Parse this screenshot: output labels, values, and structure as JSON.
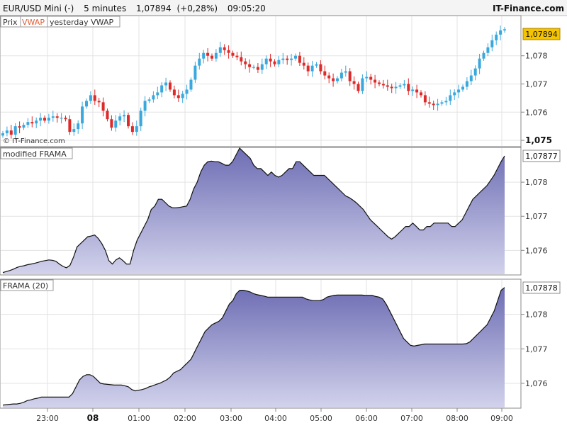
{
  "header": {
    "symbol": "EUR/USD Mini (-)",
    "timeframe": "5 minutes",
    "last_price": "1,07894",
    "change": "(+0,28%)",
    "time": "09:05:20",
    "brand": "IT-Finance.com"
  },
  "price_panel": {
    "tags": [
      "Prix",
      "VWAP",
      "yesterday VWAP"
    ],
    "copyright": "© IT-Finance.com",
    "last_value_label": "1,07894",
    "y_ticks": [
      "1,075",
      "1,076",
      "1,077",
      "1,078"
    ]
  },
  "mframa_panel": {
    "title": "modified FRAMA",
    "last_value_label": "1,07877",
    "y_ticks": [
      "1,076",
      "1,077",
      "1,078"
    ]
  },
  "frama_panel": {
    "title": "FRAMA (20)",
    "last_value_label": "1,07878",
    "y_ticks": [
      "1,076",
      "1,077",
      "1,078"
    ]
  },
  "time_axis": {
    "labels": [
      "23:00",
      "08",
      "01:00",
      "02:00",
      "03:00",
      "04:00",
      "05:00",
      "06:00",
      "07:00",
      "08:00",
      "09:00"
    ]
  },
  "colors": {
    "up_candle": "#3aa8dd",
    "down_candle": "#dd2a2a",
    "vwap_tag": "#e0603a",
    "last_price_bg": "#f5c400",
    "area_top": "#6d6db4",
    "area_bottom": "#d2d2ec",
    "grid": "#e3e3e3"
  },
  "chart_data": [
    {
      "type": "candlestick",
      "title": "EUR/USD Mini (-) 5 minutes",
      "x_unit": "time (5-minute bars)",
      "ylim": [
        1.0748,
        1.0794
      ],
      "grid": true,
      "closes": [
        1.07525,
        1.07535,
        1.0752,
        1.0755,
        1.07545,
        1.07555,
        1.07565,
        1.0756,
        1.0757,
        1.0758,
        1.0757,
        1.0758,
        1.07585,
        1.0758,
        1.0758,
        1.07575,
        1.0753,
        1.0754,
        1.0756,
        1.0762,
        1.0764,
        1.0766,
        1.0764,
        1.07635,
        1.07605,
        1.07575,
        1.07545,
        1.0757,
        1.07585,
        1.0759,
        1.0755,
        1.0753,
        1.0755,
        1.07605,
        1.0764,
        1.07645,
        1.0766,
        1.0767,
        1.07695,
        1.07705,
        1.0768,
        1.0766,
        1.0765,
        1.07665,
        1.0768,
        1.07715,
        1.07765,
        1.0779,
        1.0781,
        1.078,
        1.0779,
        1.0781,
        1.0783,
        1.0782,
        1.0781,
        1.078,
        1.07795,
        1.0778,
        1.0777,
        1.0776,
        1.0776,
        1.0775,
        1.0777,
        1.0779,
        1.0778,
        1.0777,
        1.07785,
        1.0779,
        1.07785,
        1.0779,
        1.078,
        1.07775,
        1.07765,
        1.07745,
        1.07765,
        1.0777,
        1.07745,
        1.0773,
        1.0772,
        1.0771,
        1.0772,
        1.0774,
        1.07745,
        1.0771,
        1.077,
        1.07675,
        1.0772,
        1.07725,
        1.07715,
        1.07705,
        1.077,
        1.07695,
        1.0769,
        1.07685,
        1.0769,
        1.07695,
        1.077,
        1.07675,
        1.0768,
        1.0767,
        1.0766,
        1.07635,
        1.0763,
        1.07625,
        1.0763,
        1.07635,
        1.0764,
        1.0766,
        1.0767,
        1.0768,
        1.0769,
        1.0771,
        1.0773,
        1.07755,
        1.0779,
        1.0781,
        1.0783,
        1.07855,
        1.07875,
        1.0789,
        1.07894
      ],
      "last_value": 1.07894
    },
    {
      "type": "area",
      "title": "modified FRAMA",
      "ylim": [
        1.0753,
        1.079
      ],
      "grid": true,
      "values": [
        1.07535,
        1.07538,
        1.07541,
        1.07545,
        1.0755,
        1.07553,
        1.07555,
        1.07558,
        1.0756,
        1.07562,
        1.07565,
        1.07568,
        1.0757,
        1.07572,
        1.07571,
        1.07568,
        1.0756,
        1.07553,
        1.07549,
        1.07556,
        1.0758,
        1.0761,
        1.0762,
        1.0763,
        1.0764,
        1.07642,
        1.07645,
        1.07635,
        1.0762,
        1.076,
        1.0757,
        1.0756,
        1.07572,
        1.07578,
        1.0757,
        1.0756,
        1.0756,
        1.076,
        1.0763,
        1.0765,
        1.0767,
        1.0769,
        1.0772,
        1.0773,
        1.0775,
        1.0775,
        1.0774,
        1.0773,
        1.07725,
        1.07725,
        1.07726,
        1.07728,
        1.0773,
        1.0775,
        1.0778,
        1.078,
        1.0783,
        1.0785,
        1.0786,
        1.07862,
        1.0786,
        1.0786,
        1.07855,
        1.0785,
        1.0785,
        1.0786,
        1.0788,
        1.079,
        1.0789,
        1.0788,
        1.0787,
        1.0785,
        1.0784,
        1.0784,
        1.0783,
        1.0782,
        1.0783,
        1.0782,
        1.07815,
        1.0782,
        1.0783,
        1.0784,
        1.0784,
        1.0786,
        1.0786,
        1.0785,
        1.0784,
        1.0783,
        1.0782,
        1.0782,
        1.0782,
        1.0782,
        1.0781,
        1.078,
        1.0779,
        1.0778,
        1.0777,
        1.0776,
        1.07755,
        1.07748,
        1.0774,
        1.0773,
        1.0772,
        1.07705,
        1.0769,
        1.0768,
        1.0767,
        1.0766,
        1.0765,
        1.0764,
        1.07633,
        1.0764,
        1.0765,
        1.0766,
        1.0767,
        1.0767,
        1.0768,
        1.0767,
        1.0766,
        1.0766,
        1.0767,
        1.0767,
        1.0768,
        1.0768,
        1.0768,
        1.0768,
        1.0768,
        1.0767,
        1.0767,
        1.0768,
        1.0769,
        1.0771,
        1.0773,
        1.0775,
        1.0776,
        1.0777,
        1.0778,
        1.0779,
        1.07805,
        1.0782,
        1.0784,
        1.0786,
        1.07877
      ],
      "last_value": 1.07877
    },
    {
      "type": "area",
      "title": "FRAMA (20)",
      "ylim": [
        1.0753,
        1.079
      ],
      "grid": true,
      "values": [
        1.07537,
        1.07538,
        1.07539,
        1.0754,
        1.0754,
        1.07542,
        1.07545,
        1.0755,
        1.07552,
        1.07555,
        1.07557,
        1.0756,
        1.0756,
        1.0756,
        1.0756,
        1.0756,
        1.0756,
        1.0756,
        1.0756,
        1.0756,
        1.0757,
        1.0759,
        1.0761,
        1.0762,
        1.07625,
        1.07625,
        1.0762,
        1.0761,
        1.076,
        1.07598,
        1.07597,
        1.07596,
        1.07595,
        1.07595,
        1.07595,
        1.07593,
        1.0759,
        1.07582,
        1.07578,
        1.0758,
        1.07582,
        1.07585,
        1.0759,
        1.07593,
        1.07597,
        1.076,
        1.07605,
        1.0761,
        1.07618,
        1.0763,
        1.07635,
        1.0764,
        1.0765,
        1.0766,
        1.0767,
        1.0769,
        1.0771,
        1.0773,
        1.0775,
        1.0776,
        1.0777,
        1.07775,
        1.0778,
        1.0779,
        1.0781,
        1.0783,
        1.0784,
        1.0786,
        1.0787,
        1.0787,
        1.07868,
        1.07865,
        1.0786,
        1.07857,
        1.07855,
        1.07853,
        1.0785,
        1.0785,
        1.0785,
        1.0785,
        1.0785,
        1.0785,
        1.0785,
        1.0785,
        1.0785,
        1.0785,
        1.0785,
        1.07845,
        1.07842,
        1.0784,
        1.0784,
        1.0784,
        1.07843,
        1.0785,
        1.07853,
        1.07855,
        1.07856,
        1.07856,
        1.07856,
        1.07856,
        1.07856,
        1.07856,
        1.07856,
        1.07856,
        1.07855,
        1.07855,
        1.07855,
        1.07852,
        1.0785,
        1.07845,
        1.0783,
        1.0781,
        1.0779,
        1.0777,
        1.0775,
        1.0773,
        1.0772,
        1.0771,
        1.07708,
        1.0771,
        1.07712,
        1.07714,
        1.07714,
        1.07714,
        1.07714,
        1.07714,
        1.07714,
        1.07714,
        1.07714,
        1.07714,
        1.07714,
        1.07714,
        1.07714,
        1.07715,
        1.0772,
        1.0773,
        1.0774,
        1.0775,
        1.0776,
        1.0777,
        1.0779,
        1.0781,
        1.0784,
        1.0787,
        1.07878
      ],
      "last_value": 1.07878
    }
  ]
}
